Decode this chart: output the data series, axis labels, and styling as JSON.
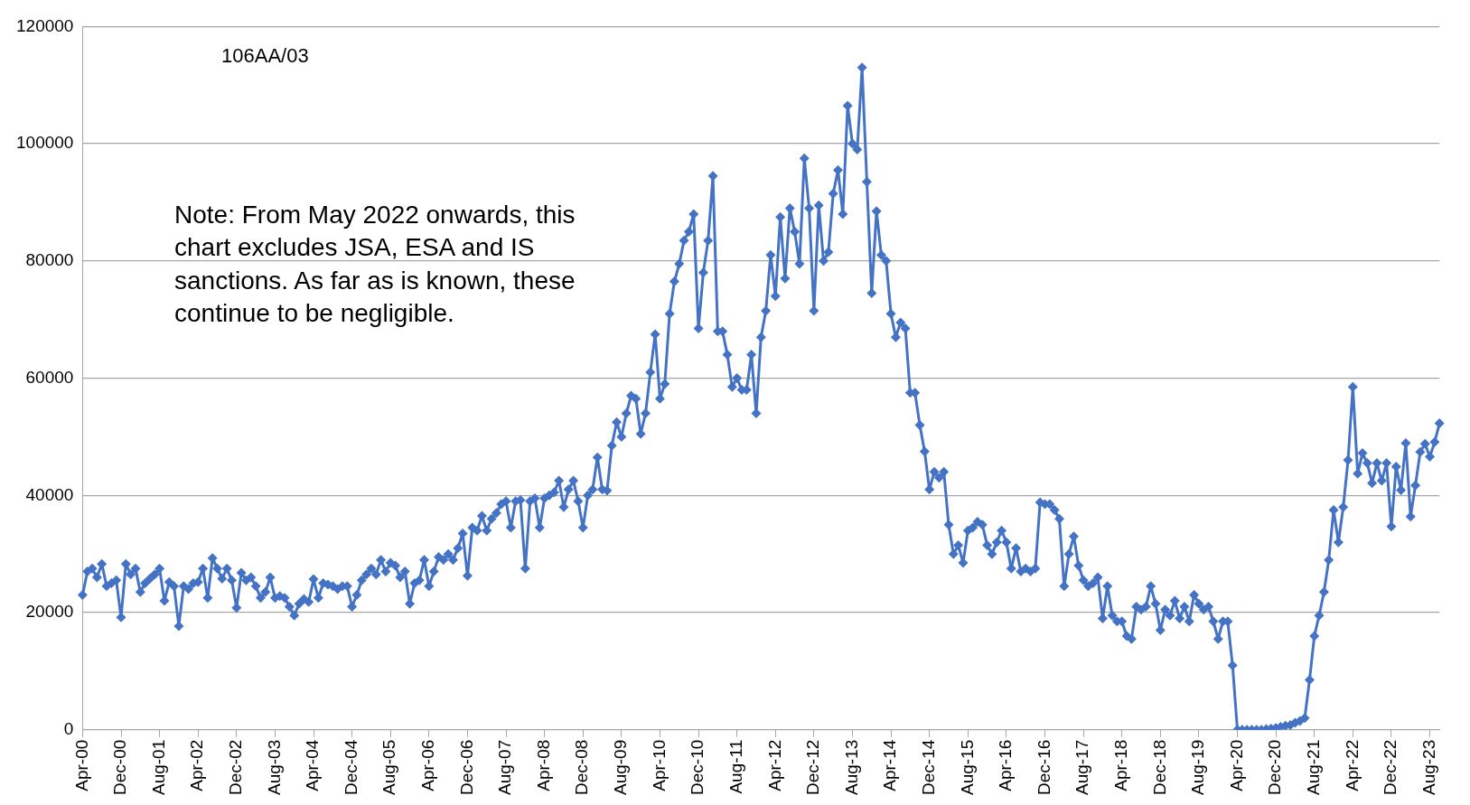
{
  "chart_data": {
    "type": "line",
    "categories": [
      "Apr-00",
      null,
      null,
      null,
      null,
      null,
      null,
      null,
      "Dec-00",
      null,
      null,
      null,
      null,
      null,
      null,
      null,
      "Aug-01",
      null,
      null,
      null,
      null,
      null,
      null,
      null,
      "Apr-02",
      null,
      null,
      null,
      null,
      null,
      null,
      null,
      "Dec-02",
      null,
      null,
      null,
      null,
      null,
      null,
      null,
      "Aug-03",
      null,
      null,
      null,
      null,
      null,
      null,
      null,
      "Apr-04",
      null,
      null,
      null,
      null,
      null,
      null,
      null,
      "Dec-04",
      null,
      null,
      null,
      null,
      null,
      null,
      null,
      "Aug-05",
      null,
      null,
      null,
      null,
      null,
      null,
      null,
      "Apr-06",
      null,
      null,
      null,
      null,
      null,
      null,
      null,
      "Dec-06",
      null,
      null,
      null,
      null,
      null,
      null,
      null,
      "Aug-07",
      null,
      null,
      null,
      null,
      null,
      null,
      null,
      "Apr-08",
      null,
      null,
      null,
      null,
      null,
      null,
      null,
      "Dec-08",
      null,
      null,
      null,
      null,
      null,
      null,
      null,
      "Aug-09",
      null,
      null,
      null,
      null,
      null,
      null,
      null,
      "Apr-10",
      null,
      null,
      null,
      null,
      null,
      null,
      null,
      "Dec-10",
      null,
      null,
      null,
      null,
      null,
      null,
      null,
      "Aug-11",
      null,
      null,
      null,
      null,
      null,
      null,
      null,
      "Apr-12",
      null,
      null,
      null,
      null,
      null,
      null,
      null,
      "Dec-12",
      null,
      null,
      null,
      null,
      null,
      null,
      null,
      "Aug-13",
      null,
      null,
      null,
      null,
      null,
      null,
      null,
      "Apr-14",
      null,
      null,
      null,
      null,
      null,
      null,
      null,
      "Dec-14",
      null,
      null,
      null,
      null,
      null,
      null,
      null,
      "Aug-15",
      null,
      null,
      null,
      null,
      null,
      null,
      null,
      "Apr-16",
      null,
      null,
      null,
      null,
      null,
      null,
      null,
      "Dec-16",
      null,
      null,
      null,
      null,
      null,
      null,
      null,
      "Aug-17",
      null,
      null,
      null,
      null,
      null,
      null,
      null,
      "Apr-18",
      null,
      null,
      null,
      null,
      null,
      null,
      null,
      "Dec-18",
      null,
      null,
      null,
      null,
      null,
      null,
      null,
      "Aug-19",
      null,
      null,
      null,
      null,
      null,
      null,
      null,
      "Apr-20",
      null,
      null,
      null,
      null,
      null,
      null,
      null,
      "Dec-20",
      null,
      null,
      null,
      null,
      null,
      null,
      null,
      "Aug-21",
      null,
      null,
      null,
      null,
      null,
      null,
      null,
      "Apr-22",
      null,
      null,
      null,
      null,
      null,
      null,
      null,
      "Dec-22",
      null,
      null,
      null,
      null,
      null,
      null,
      null,
      "Aug-23",
      null,
      null
    ],
    "series": [
      {
        "color": "#4472c4",
        "values": [
          23000,
          27000,
          27500,
          26000,
          28300,
          24500,
          25000,
          25500,
          19200,
          28300,
          26500,
          27500,
          23500,
          25000,
          25800,
          26500,
          27500,
          22000,
          25200,
          24500,
          17700,
          24500,
          24000,
          25000,
          25200,
          27500,
          22500,
          29300,
          27500,
          25800,
          27500,
          25500,
          20800,
          26800,
          25500,
          26000,
          24500,
          22500,
          23500,
          26000,
          22500,
          22800,
          22500,
          21000,
          19500,
          21500,
          22300,
          21800,
          25700,
          22500,
          25000,
          24800,
          24500,
          24000,
          24500,
          24500,
          21000,
          23000,
          25500,
          26500,
          27500,
          26500,
          29000,
          27000,
          28500,
          28000,
          26000,
          27000,
          21500,
          25000,
          25500,
          29000,
          24500,
          27000,
          29500,
          29000,
          30000,
          29000,
          31000,
          33500,
          26300,
          34500,
          34000,
          36500,
          34000,
          36000,
          37000,
          38500,
          39000,
          34500,
          39000,
          39200,
          27500,
          39000,
          39500,
          34500,
          39500,
          40000,
          40500,
          42500,
          38000,
          41000,
          42500,
          39000,
          34500,
          40000,
          41000,
          46500,
          41000,
          40800,
          48500,
          52500,
          50000,
          54000,
          57000,
          56500,
          50500,
          54000,
          61000,
          67500,
          56500,
          59000,
          71000,
          76500,
          79500,
          83500,
          85000,
          88000,
          68500,
          78000,
          83500,
          94500,
          68000,
          68000,
          64000,
          58500,
          60000,
          58000,
          58000,
          64000,
          54000,
          67000,
          71500,
          81000,
          74000,
          87500,
          77000,
          89000,
          85000,
          79500,
          97500,
          89000,
          71500,
          89500,
          80000,
          81500,
          91500,
          95500,
          88000,
          106500,
          100000,
          99000,
          113000,
          93500,
          74500,
          88500,
          81000,
          80000,
          71000,
          67000,
          69500,
          68500,
          57500,
          57500,
          52000,
          47500,
          41000,
          44000,
          43000,
          44000,
          35000,
          30000,
          31500,
          28500,
          34000,
          34500,
          35500,
          35000,
          31500,
          30000,
          32000,
          34000,
          32000,
          27500,
          31000,
          27000,
          27500,
          27000,
          27500,
          38800,
          38500,
          38500,
          37500,
          36000,
          24500,
          30000,
          33000,
          28000,
          25500,
          24500,
          25000,
          26000,
          19000,
          24500,
          19500,
          18500,
          18500,
          16000,
          15500,
          21000,
          20500,
          21000,
          24500,
          21500,
          17000,
          20500,
          19500,
          22000,
          19000,
          21000,
          18500,
          23000,
          21500,
          20500,
          21000,
          18500,
          15500,
          18500,
          18500,
          11000,
          0,
          0,
          0,
          0,
          0,
          0,
          100,
          200,
          300,
          500,
          700,
          800,
          1200,
          1500,
          2000,
          8500,
          16000,
          19500,
          23500,
          29000,
          37500,
          32000,
          38000,
          46000,
          58500,
          43700,
          47200,
          45500,
          42100,
          45500,
          42500,
          45500,
          34700,
          44900,
          40900,
          48900,
          36400,
          41700,
          47400,
          48800,
          46600,
          49100,
          52300
        ]
      }
    ],
    "ylim": [
      0,
      120000
    ],
    "yticks": [
      0,
      20000,
      40000,
      60000,
      80000,
      100000,
      120000
    ],
    "grid": "y",
    "legend": false,
    "marker": "diamond",
    "line_style": "solid",
    "annotations": [
      "106AA/03",
      "Note: From May 2022 onwards, this chart excludes JSA, ESA and IS sanctions. As far as is known, these continue to be negligible."
    ]
  }
}
